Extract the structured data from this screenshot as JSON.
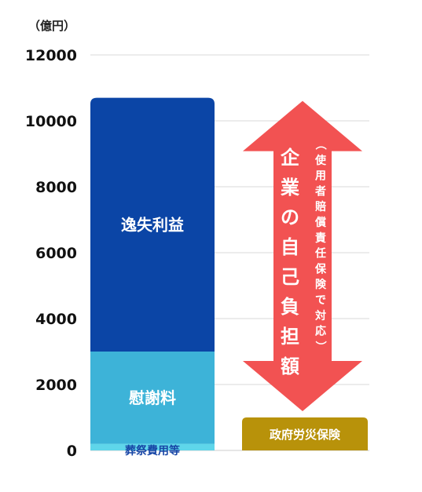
{
  "chart_data": {
    "type": "bar",
    "unit_label": "（億円）",
    "yticks": [
      "0",
      "2000",
      "4000",
      "6000",
      "8000",
      "10000",
      "12000"
    ],
    "ylim": [
      0,
      12000
    ],
    "grid": true,
    "stacked_bar": {
      "segments": [
        {
          "name": "葬祭費用等",
          "value": 200,
          "color": "#5fd6ea"
        },
        {
          "name": "慰謝料",
          "value": 2800,
          "color": "#3db3d8"
        },
        {
          "name": "逸失利益",
          "value": 7700,
          "color": "#0b45a6"
        }
      ],
      "total": 10700
    },
    "government_box": {
      "label": "政府労災保険",
      "value": 1000,
      "color": "#b8920a"
    },
    "arrow": {
      "from": 1000,
      "to": 10700,
      "color": "#f25252",
      "main_label": "企業の自己負担額",
      "sub_label": "（使用者賠償責任保険で対応）"
    }
  }
}
